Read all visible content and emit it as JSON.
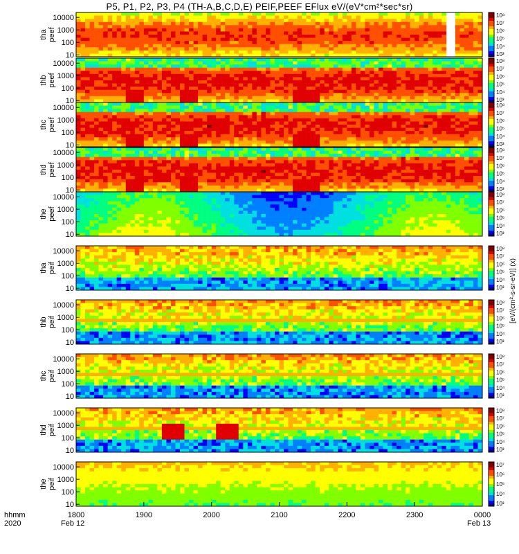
{
  "title": "P5, P1, P2, P3, P4 (TH-A,B,C,D,E) PEIF,PEEF EFlux eV/(eV*cm²*sec*sr)",
  "chart_data": {
    "type": "heatmap",
    "x_ticks": [
      "1800",
      "1900",
      "2000",
      "2100",
      "2200",
      "2300",
      "0000"
    ],
    "x_date_labels": {
      "start": "Feb 12",
      "end": "Feb 13"
    },
    "x_row_labels": [
      "hhmm",
      "2020"
    ],
    "xlim": [
      "2020-02-12 18:00",
      "2020-02-13 00:00"
    ],
    "y_ticks": [
      "10000",
      "1000",
      "100",
      "10"
    ],
    "y_scale": "log",
    "ylim_eV": [
      7,
      25000
    ],
    "colorbar_label": "[eV/(cm²-s-sr-eV)] (x)",
    "colorbar_scale": "log",
    "panels": [
      {
        "ylabel": [
          "tha",
          "peef"
        ],
        "cbar_ticks": [
          "10⁸",
          "10⁷",
          "10⁶",
          "10⁵",
          "10⁴",
          "10³"
        ],
        "base": 0.55,
        "gap": [
          0.905,
          0.925
        ]
      },
      {
        "ylabel": [
          "thb",
          "peef"
        ],
        "cbar_ticks": [
          "10⁸",
          "10⁷",
          "10⁶",
          "10⁵",
          "10⁴",
          "10³"
        ],
        "base": 0.6
      },
      {
        "ylabel": [
          "thc",
          "peef"
        ],
        "cbar_ticks": [
          "10⁸",
          "10⁷",
          "10⁶",
          "10⁵",
          "10⁴",
          "10³"
        ],
        "base": 0.6
      },
      {
        "ylabel": [
          "thd",
          "peef"
        ],
        "cbar_ticks": [
          "10⁸",
          "10⁷",
          "10⁶",
          "10⁵",
          "10⁴",
          "10³"
        ],
        "base": 0.6
      },
      {
        "ylabel": [
          "the",
          "peef"
        ],
        "cbar_ticks": [
          "10⁸",
          "10⁷",
          "10⁶",
          "10⁵",
          "10⁴",
          "10³"
        ],
        "base": 0.45
      },
      {
        "ylabel": [
          "tha",
          "peif"
        ],
        "cbar_ticks": [
          "10⁸",
          "10⁷",
          "10⁶",
          "10⁵",
          "10⁴",
          "10³"
        ],
        "base": 0.35
      },
      {
        "ylabel": [
          "thb",
          "peif"
        ],
        "cbar_ticks": [
          "10⁸",
          "10⁷",
          "10⁶",
          "10⁵",
          "10⁴",
          "10³"
        ],
        "base": 0.35
      },
      {
        "ylabel": [
          "thc",
          "peif"
        ],
        "cbar_ticks": [
          "10⁸",
          "10⁷",
          "10⁶",
          "10⁵",
          "10⁴",
          "10³"
        ],
        "base": 0.35
      },
      {
        "ylabel": [
          "thd",
          "peif"
        ],
        "cbar_ticks": [
          "10⁸",
          "10⁷",
          "10⁶",
          "10⁵",
          "10⁴",
          "10³"
        ],
        "base": 0.35
      },
      {
        "ylabel": [
          "the",
          "peif"
        ],
        "cbar_ticks": [
          "10⁷",
          "10⁶",
          "10⁵",
          "10⁴",
          "10³"
        ],
        "base": 0.45
      }
    ],
    "colormap": [
      "#000080",
      "#0000ff",
      "#0080ff",
      "#00e0e0",
      "#00ff80",
      "#80ff00",
      "#ffff00",
      "#ffb000",
      "#ff5000",
      "#e00000",
      "#800000"
    ]
  }
}
